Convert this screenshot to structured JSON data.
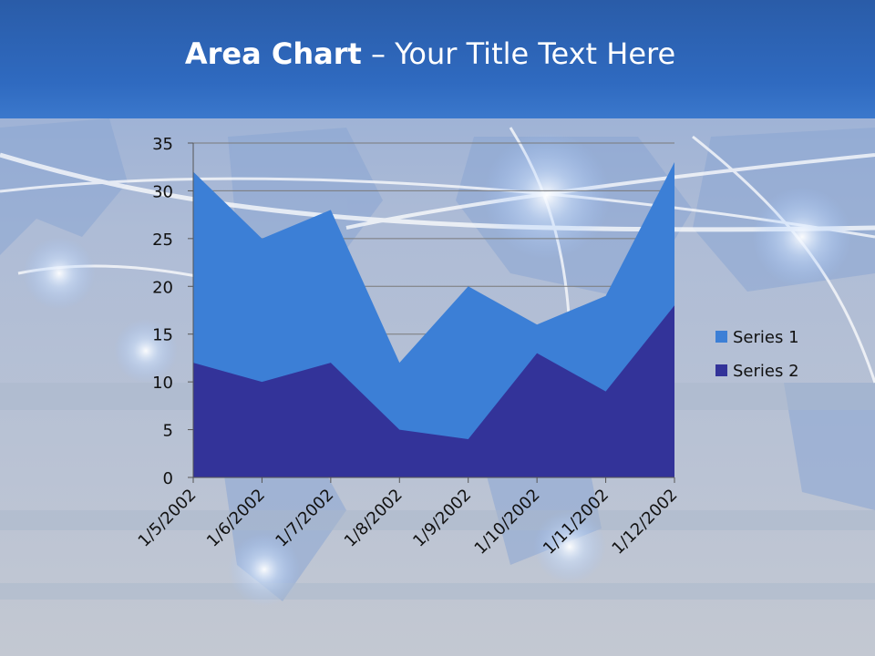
{
  "title": {
    "bold": "Area Chart",
    "rest": " – Your Title Text Here"
  },
  "colors": {
    "series1": "#3c7fd6",
    "series2": "#333399",
    "gridline": "#7a7a7a",
    "axis": "#555555",
    "header": "#2f6ac0"
  },
  "chart_data": {
    "type": "area",
    "stacked": true,
    "categories": [
      "1/5/2002",
      "1/6/2002",
      "1/7/2002",
      "1/8/2002",
      "1/9/2002",
      "1/10/2002",
      "1/11/2002",
      "1/12/2002"
    ],
    "series": [
      {
        "name": "Series 1",
        "values": [
          20,
          15,
          16,
          7,
          16,
          3,
          10,
          15
        ]
      },
      {
        "name": "Series 2",
        "values": [
          12,
          10,
          12,
          5,
          4,
          13,
          9,
          18
        ]
      }
    ],
    "ylim": [
      0,
      35
    ],
    "yticks": [
      0,
      5,
      10,
      15,
      20,
      25,
      30,
      35
    ],
    "grid": true,
    "legend": "right"
  }
}
